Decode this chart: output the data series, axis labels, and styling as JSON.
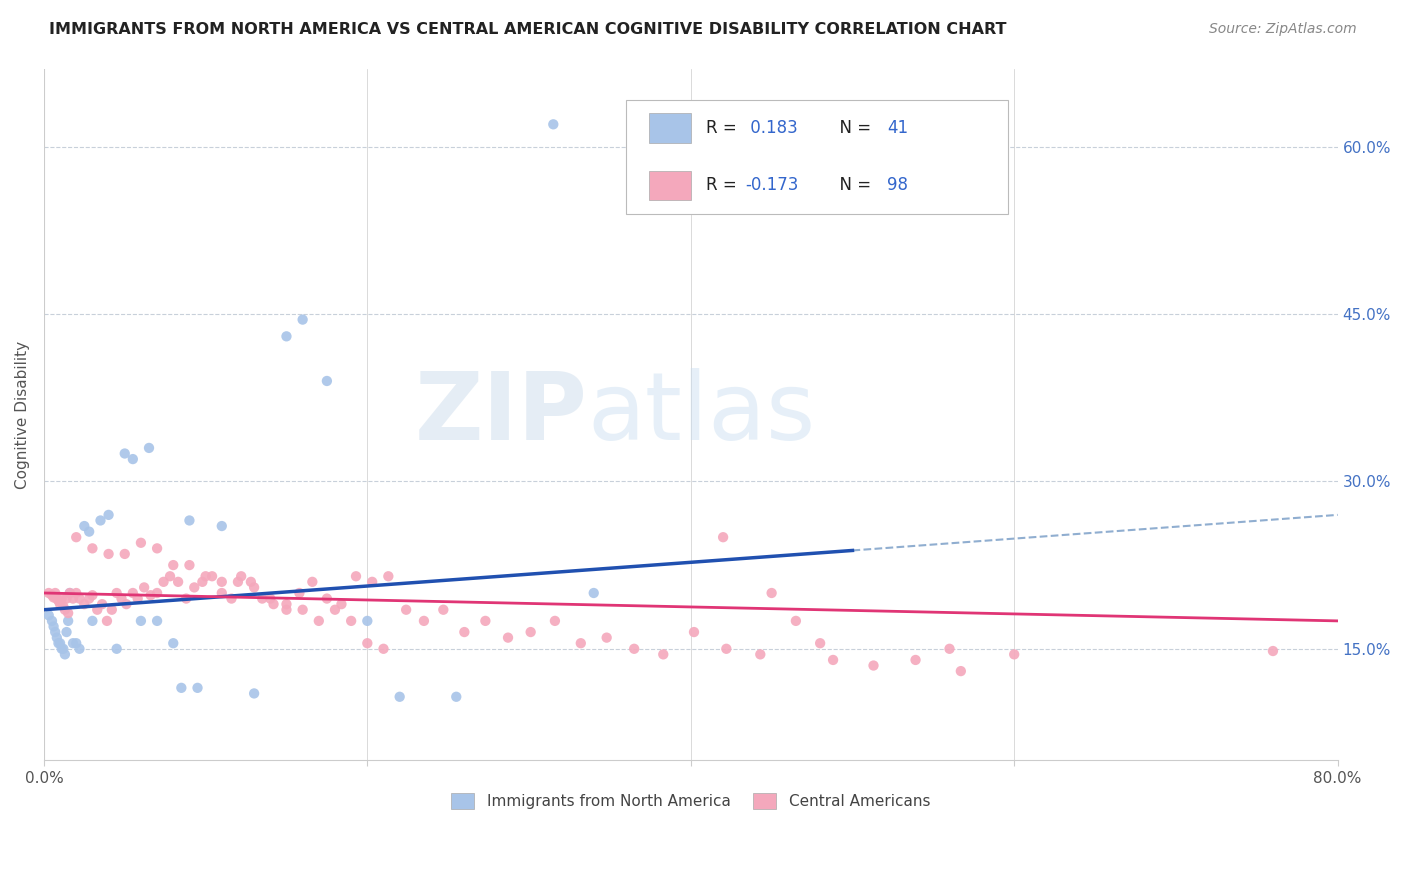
{
  "title": "IMMIGRANTS FROM NORTH AMERICA VS CENTRAL AMERICAN COGNITIVE DISABILITY CORRELATION CHART",
  "source": "Source: ZipAtlas.com",
  "ylabel": "Cognitive Disability",
  "right_yticks": [
    "15.0%",
    "30.0%",
    "45.0%",
    "60.0%"
  ],
  "right_ytick_vals": [
    0.15,
    0.3,
    0.45,
    0.6
  ],
  "legend_label1": "Immigrants from North America",
  "legend_label2": "Central Americans",
  "R1": 0.183,
  "N1": 41,
  "R2": -0.173,
  "N2": 98,
  "color_blue": "#a8c4e8",
  "color_pink": "#f4a8bc",
  "line_blue": "#2050b0",
  "line_pink": "#e03575",
  "line_dashed_color": "#90aed0",
  "watermark_zip": "ZIP",
  "watermark_atlas": "atlas",
  "xlim": [
    0.0,
    0.8
  ],
  "ylim": [
    0.05,
    0.67
  ],
  "blue_x": [
    0.003,
    0.005,
    0.006,
    0.007,
    0.008,
    0.009,
    0.01,
    0.011,
    0.012,
    0.013,
    0.014,
    0.015,
    0.016,
    0.018,
    0.02,
    0.022,
    0.025,
    0.028,
    0.03,
    0.035,
    0.04,
    0.045,
    0.05,
    0.055,
    0.06,
    0.065,
    0.07,
    0.08,
    0.085,
    0.09,
    0.095,
    0.11,
    0.13,
    0.15,
    0.16,
    0.175,
    0.2,
    0.22,
    0.255,
    0.315,
    0.34
  ],
  "blue_y": [
    0.18,
    0.175,
    0.17,
    0.165,
    0.16,
    0.155,
    0.155,
    0.15,
    0.15,
    0.145,
    0.165,
    0.175,
    0.2,
    0.155,
    0.155,
    0.15,
    0.26,
    0.255,
    0.175,
    0.265,
    0.27,
    0.15,
    0.325,
    0.32,
    0.175,
    0.33,
    0.175,
    0.155,
    0.115,
    0.265,
    0.115,
    0.26,
    0.11,
    0.43,
    0.445,
    0.39,
    0.175,
    0.107,
    0.107,
    0.62,
    0.2
  ],
  "pink_x": [
    0.003,
    0.005,
    0.006,
    0.007,
    0.008,
    0.009,
    0.01,
    0.011,
    0.012,
    0.013,
    0.014,
    0.015,
    0.016,
    0.018,
    0.02,
    0.022,
    0.025,
    0.028,
    0.03,
    0.033,
    0.036,
    0.039,
    0.042,
    0.045,
    0.048,
    0.051,
    0.055,
    0.058,
    0.062,
    0.066,
    0.07,
    0.074,
    0.078,
    0.083,
    0.088,
    0.093,
    0.098,
    0.104,
    0.11,
    0.116,
    0.122,
    0.128,
    0.135,
    0.142,
    0.15,
    0.158,
    0.166,
    0.175,
    0.184,
    0.193,
    0.203,
    0.213,
    0.224,
    0.235,
    0.247,
    0.26,
    0.273,
    0.287,
    0.301,
    0.316,
    0.332,
    0.348,
    0.365,
    0.383,
    0.402,
    0.422,
    0.443,
    0.465,
    0.488,
    0.513,
    0.539,
    0.567,
    0.02,
    0.03,
    0.04,
    0.05,
    0.06,
    0.07,
    0.08,
    0.09,
    0.1,
    0.11,
    0.12,
    0.13,
    0.14,
    0.15,
    0.16,
    0.17,
    0.18,
    0.19,
    0.2,
    0.21,
    0.42,
    0.45,
    0.48,
    0.56,
    0.6,
    0.76
  ],
  "pink_y": [
    0.2,
    0.198,
    0.196,
    0.2,
    0.195,
    0.193,
    0.19,
    0.195,
    0.188,
    0.185,
    0.195,
    0.182,
    0.2,
    0.195,
    0.2,
    0.195,
    0.19,
    0.195,
    0.198,
    0.185,
    0.19,
    0.175,
    0.185,
    0.2,
    0.195,
    0.19,
    0.2,
    0.195,
    0.205,
    0.198,
    0.2,
    0.21,
    0.215,
    0.21,
    0.195,
    0.205,
    0.21,
    0.215,
    0.2,
    0.195,
    0.215,
    0.21,
    0.195,
    0.19,
    0.185,
    0.2,
    0.21,
    0.195,
    0.19,
    0.215,
    0.21,
    0.215,
    0.185,
    0.175,
    0.185,
    0.165,
    0.175,
    0.16,
    0.165,
    0.175,
    0.155,
    0.16,
    0.15,
    0.145,
    0.165,
    0.15,
    0.145,
    0.175,
    0.14,
    0.135,
    0.14,
    0.13,
    0.25,
    0.24,
    0.235,
    0.235,
    0.245,
    0.24,
    0.225,
    0.225,
    0.215,
    0.21,
    0.21,
    0.205,
    0.195,
    0.19,
    0.185,
    0.175,
    0.185,
    0.175,
    0.155,
    0.15,
    0.25,
    0.2,
    0.155,
    0.15,
    0.145,
    0.148
  ],
  "trend_blue_start_y": 0.185,
  "trend_blue_end_y": 0.27,
  "trend_blue_solid_end_x": 0.5,
  "trend_pink_start_y": 0.2,
  "trend_pink_end_y": 0.175
}
